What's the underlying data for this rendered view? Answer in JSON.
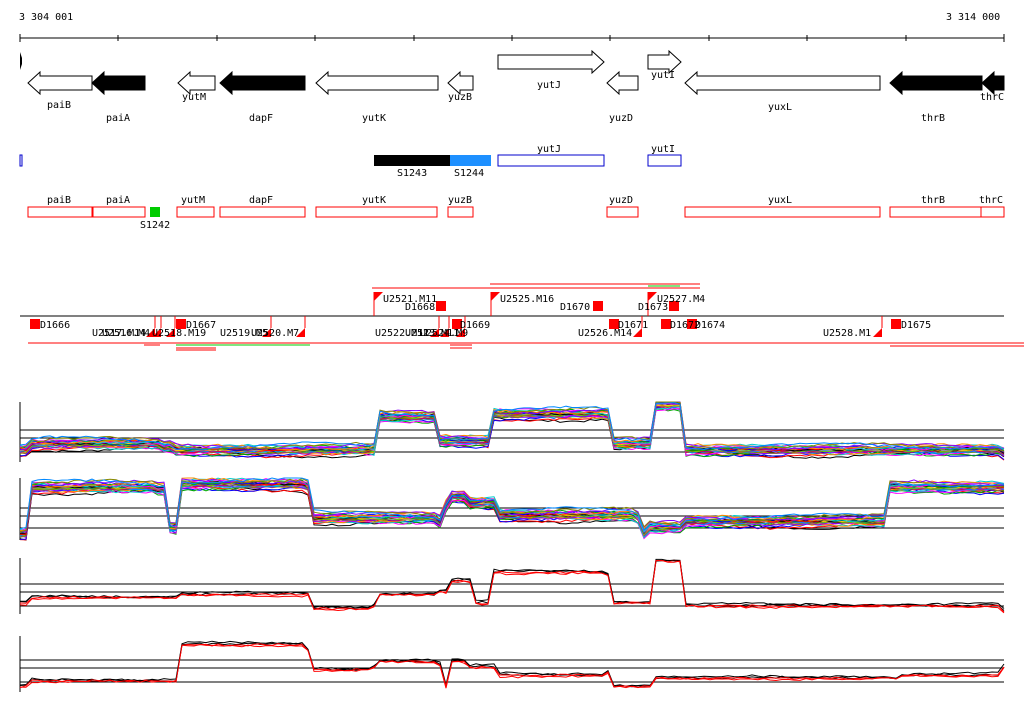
{
  "genome_browser": {
    "start_coord": "3 304 001",
    "end_coord": "3 314 000",
    "colors": {
      "accent_blue": "#1e90ff",
      "segment_black": "#000000",
      "probe_green": "#00cc00",
      "annotation_red": "#ff0000",
      "gene_outline_blue": "#0000cc"
    },
    "genes_track": [
      {
        "label": "paiB",
        "filled": false,
        "strand": "-"
      },
      {
        "label": "paiA",
        "filled": true,
        "strand": "-"
      },
      {
        "label": "yutM",
        "filled": false,
        "strand": "-"
      },
      {
        "label": "dapF",
        "filled": true,
        "strand": "-"
      },
      {
        "label": "yutK",
        "filled": false,
        "strand": "-"
      },
      {
        "label": "yuzB",
        "filled": false,
        "strand": "-"
      },
      {
        "label": "yutJ",
        "filled": false,
        "strand": "+"
      },
      {
        "label": "yuzD",
        "filled": false,
        "strand": "-"
      },
      {
        "label": "yutI",
        "filled": false,
        "strand": "+"
      },
      {
        "label": "yuxL",
        "filled": false,
        "strand": "-"
      },
      {
        "label": "thrB",
        "filled": true,
        "strand": "-"
      },
      {
        "label": "thrC",
        "filled": true,
        "strand": "-"
      }
    ],
    "segments_track": [
      {
        "label": "S1243"
      },
      {
        "label": "S1244"
      },
      {
        "label": "yutJ"
      },
      {
        "label": "yutI"
      }
    ],
    "red_genes_track": [
      {
        "label": "paiB"
      },
      {
        "label": "paiA"
      },
      {
        "label": "yutM"
      },
      {
        "label": "dapF"
      },
      {
        "label": "yutK"
      },
      {
        "label": "yuzB"
      },
      {
        "label": "yuzD"
      },
      {
        "label": "yuxL"
      },
      {
        "label": "thrB"
      },
      {
        "label": "thrC"
      }
    ],
    "probe_label": "S1242",
    "upper_features": [
      {
        "label": "U2521.M11"
      },
      {
        "label": "D1668"
      },
      {
        "label": "U2525.M16"
      },
      {
        "label": "D1670"
      },
      {
        "label": "D1673"
      },
      {
        "label": "U2527.M4"
      }
    ],
    "lower_features": [
      {
        "label": "D1666"
      },
      {
        "label": "U2517.M14"
      },
      {
        "label": "U2516.M4"
      },
      {
        "label": "U2518.M19"
      },
      {
        "label": "D1667"
      },
      {
        "label": "U2519.M5"
      },
      {
        "label": "U2520.M7"
      },
      {
        "label": "U2522.M11"
      },
      {
        "label": "U2523.M11"
      },
      {
        "label": "U2524.M9"
      },
      {
        "label": "D1669"
      },
      {
        "label": "U2526.M14"
      },
      {
        "label": "D1671"
      },
      {
        "label": "D1672"
      },
      {
        "label": "D1674"
      },
      {
        "label": "U2528.M1"
      },
      {
        "label": "D1675"
      }
    ],
    "expression_panels": [
      {
        "kind": "multicolor",
        "note": ""
      },
      {
        "kind": "multicolor",
        "note": ""
      },
      {
        "kind": "black-red",
        "note": ""
      },
      {
        "kind": "black-red",
        "note": ""
      }
    ]
  }
}
